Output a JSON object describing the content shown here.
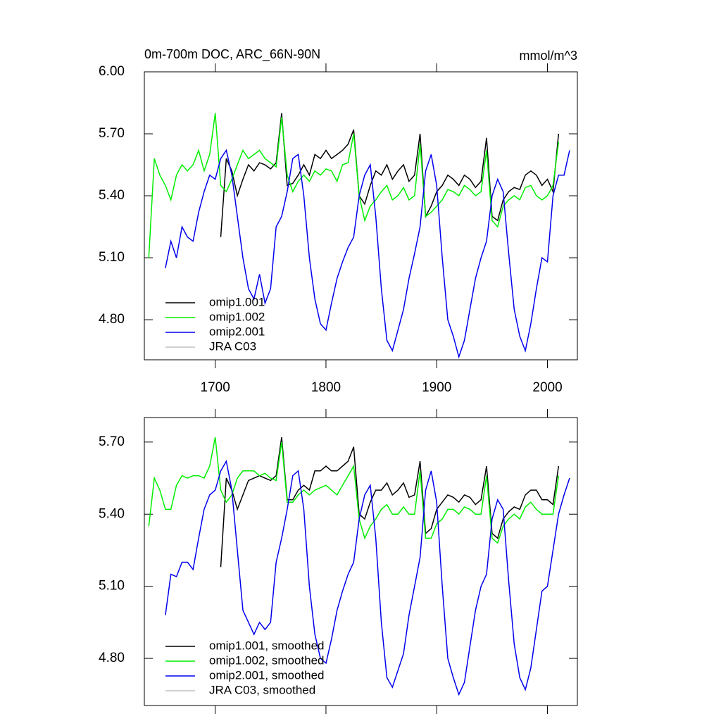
{
  "chart_data": [
    {
      "type": "line",
      "title": "0m-700m DOC, ARC_66N-90N",
      "subtitle": "mmol/m^3",
      "xlim": [
        1636,
        2027
      ],
      "xticks": [
        1700,
        1800,
        1900,
        2000
      ],
      "ylim": [
        4.606,
        6.0
      ],
      "yticks": [
        {
          "value": 4.8,
          "label": "4.80"
        },
        {
          "value": 5.1,
          "label": "5.10"
        },
        {
          "value": 5.4,
          "label": "5.40"
        },
        {
          "value": 5.7,
          "label": "5.70"
        },
        {
          "value": 6.0,
          "label": "6.00"
        }
      ],
      "legend": "lower left",
      "x": [
        1640,
        1645,
        1650,
        1655,
        1660,
        1665,
        1670,
        1675,
        1680,
        1685,
        1690,
        1695,
        1700,
        1705,
        1710,
        1715,
        1720,
        1725,
        1730,
        1735,
        1740,
        1745,
        1750,
        1755,
        1760,
        1765,
        1770,
        1775,
        1780,
        1785,
        1790,
        1795,
        1800,
        1805,
        1810,
        1815,
        1820,
        1825,
        1830,
        1835,
        1840,
        1845,
        1850,
        1855,
        1860,
        1865,
        1870,
        1875,
        1880,
        1885,
        1890,
        1895,
        1900,
        1905,
        1910,
        1915,
        1920,
        1925,
        1930,
        1935,
        1940,
        1945,
        1950,
        1955,
        1960,
        1965,
        1970,
        1975,
        1980,
        1985,
        1990,
        1995,
        2000,
        2005,
        2010,
        2015,
        2020
      ],
      "series": [
        {
          "name": "omip1.001",
          "color": "#000000",
          "values": [
            null,
            null,
            null,
            null,
            null,
            null,
            null,
            null,
            null,
            null,
            null,
            null,
            null,
            5.2,
            5.58,
            5.52,
            5.4,
            5.48,
            5.55,
            5.52,
            5.56,
            5.55,
            5.53,
            5.56,
            5.8,
            5.45,
            5.46,
            5.5,
            5.55,
            5.5,
            5.6,
            5.58,
            5.62,
            5.58,
            5.6,
            5.62,
            5.65,
            5.72,
            5.4,
            5.36,
            5.45,
            5.52,
            5.5,
            5.55,
            5.48,
            5.52,
            5.55,
            5.47,
            5.5,
            5.7,
            5.3,
            5.35,
            5.42,
            5.45,
            5.5,
            5.48,
            5.45,
            5.5,
            5.48,
            5.44,
            5.47,
            5.68,
            5.3,
            5.28,
            5.38,
            5.42,
            5.44,
            5.43,
            5.5,
            5.52,
            5.5,
            5.45,
            5.48,
            5.42,
            5.7,
            null,
            null
          ]
        },
        {
          "name": "omip1.002",
          "color": "#00ee00",
          "values": [
            5.1,
            5.58,
            5.5,
            5.45,
            5.38,
            5.5,
            5.55,
            5.52,
            5.55,
            5.62,
            5.52,
            5.6,
            5.8,
            5.45,
            5.42,
            5.48,
            5.55,
            5.62,
            5.58,
            5.6,
            5.62,
            5.58,
            5.56,
            5.54,
            5.78,
            5.5,
            5.42,
            5.47,
            5.5,
            5.47,
            5.52,
            5.5,
            5.53,
            5.52,
            5.47,
            5.55,
            5.56,
            5.7,
            5.4,
            5.28,
            5.35,
            5.38,
            5.42,
            5.45,
            5.38,
            5.4,
            5.44,
            5.38,
            5.4,
            5.65,
            5.3,
            5.32,
            5.35,
            5.38,
            5.43,
            5.42,
            5.4,
            5.45,
            5.43,
            5.4,
            5.42,
            5.62,
            5.28,
            5.25,
            5.35,
            5.38,
            5.4,
            5.38,
            5.44,
            5.45,
            5.4,
            5.38,
            5.4,
            5.45,
            5.66,
            null,
            null
          ]
        },
        {
          "name": "omip2.001",
          "color": "#0000ee",
          "values": [
            null,
            null,
            null,
            5.05,
            5.18,
            5.1,
            5.25,
            5.2,
            5.18,
            5.32,
            5.42,
            5.5,
            5.48,
            5.58,
            5.62,
            5.5,
            5.3,
            5.1,
            4.95,
            4.9,
            5.02,
            4.88,
            4.95,
            5.25,
            5.3,
            5.42,
            5.58,
            5.6,
            5.4,
            5.1,
            4.9,
            4.78,
            4.75,
            4.88,
            5.0,
            5.08,
            5.15,
            5.2,
            5.4,
            5.5,
            5.55,
            5.3,
            4.95,
            4.7,
            4.65,
            4.75,
            4.85,
            5.0,
            5.12,
            5.25,
            5.52,
            5.6,
            5.45,
            5.1,
            4.8,
            4.72,
            4.62,
            4.7,
            4.85,
            5.0,
            5.1,
            5.18,
            5.4,
            5.48,
            5.42,
            5.12,
            4.85,
            4.72,
            4.65,
            4.78,
            4.95,
            5.1,
            5.08,
            5.4,
            5.5,
            5.5,
            5.62
          ]
        },
        {
          "name": "JRA C03",
          "color": "#c0c0c0"
        }
      ]
    },
    {
      "type": "line",
      "xlim": [
        1636,
        2027
      ],
      "ylim": [
        4.604,
        5.802
      ],
      "yticks": [
        {
          "value": 4.8,
          "label": "4.80"
        },
        {
          "value": 5.1,
          "label": "5.10"
        },
        {
          "value": 5.4,
          "label": "5.40"
        },
        {
          "value": 5.7,
          "label": "5.70"
        }
      ],
      "legend": "lower left",
      "x": [
        1640,
        1645,
        1650,
        1655,
        1660,
        1665,
        1670,
        1675,
        1680,
        1685,
        1690,
        1695,
        1700,
        1705,
        1710,
        1715,
        1720,
        1725,
        1730,
        1735,
        1740,
        1745,
        1750,
        1755,
        1760,
        1765,
        1770,
        1775,
        1780,
        1785,
        1790,
        1795,
        1800,
        1805,
        1810,
        1815,
        1820,
        1825,
        1830,
        1835,
        1840,
        1845,
        1850,
        1855,
        1860,
        1865,
        1870,
        1875,
        1880,
        1885,
        1890,
        1895,
        1900,
        1905,
        1910,
        1915,
        1920,
        1925,
        1930,
        1935,
        1940,
        1945,
        1950,
        1955,
        1960,
        1965,
        1970,
        1975,
        1980,
        1985,
        1990,
        1995,
        2000,
        2005,
        2010,
        2015,
        2020
      ],
      "series": [
        {
          "name": "omip1.001, smoothed",
          "color": "#000000",
          "values": [
            null,
            null,
            null,
            null,
            null,
            null,
            null,
            null,
            null,
            null,
            null,
            null,
            null,
            5.18,
            5.55,
            5.5,
            5.42,
            5.48,
            5.54,
            5.55,
            5.56,
            5.55,
            5.54,
            5.56,
            5.72,
            5.46,
            5.46,
            5.5,
            5.52,
            5.5,
            5.58,
            5.58,
            5.6,
            5.58,
            5.58,
            5.6,
            5.62,
            5.68,
            5.4,
            5.38,
            5.45,
            5.5,
            5.5,
            5.53,
            5.48,
            5.5,
            5.53,
            5.47,
            5.48,
            5.62,
            5.32,
            5.34,
            5.42,
            5.45,
            5.48,
            5.47,
            5.45,
            5.48,
            5.47,
            5.44,
            5.46,
            5.6,
            5.32,
            5.3,
            5.38,
            5.41,
            5.43,
            5.42,
            5.48,
            5.5,
            5.5,
            5.46,
            5.46,
            5.44,
            5.6,
            null,
            null
          ]
        },
        {
          "name": "omip1.002, smoothed",
          "color": "#00ee00",
          "values": [
            5.35,
            5.55,
            5.5,
            5.42,
            5.42,
            5.52,
            5.56,
            5.55,
            5.56,
            5.56,
            5.55,
            5.6,
            5.72,
            5.5,
            5.45,
            5.48,
            5.55,
            5.58,
            5.58,
            5.58,
            5.56,
            5.57,
            5.55,
            5.54,
            5.7,
            5.45,
            5.45,
            5.48,
            5.5,
            5.48,
            5.5,
            5.51,
            5.52,
            5.5,
            5.48,
            5.52,
            5.56,
            5.6,
            5.38,
            5.3,
            5.35,
            5.38,
            5.42,
            5.44,
            5.4,
            5.4,
            5.43,
            5.4,
            5.4,
            5.58,
            5.3,
            5.3,
            5.36,
            5.38,
            5.42,
            5.42,
            5.4,
            5.43,
            5.42,
            5.4,
            5.4,
            5.56,
            5.3,
            5.28,
            5.35,
            5.38,
            5.4,
            5.38,
            5.43,
            5.45,
            5.42,
            5.4,
            5.4,
            5.4,
            5.56,
            null,
            null
          ]
        },
        {
          "name": "omip2.001, smoothed",
          "color": "#0000ee",
          "values": [
            null,
            null,
            null,
            4.98,
            5.15,
            5.14,
            5.2,
            5.2,
            5.17,
            5.3,
            5.42,
            5.48,
            5.5,
            5.58,
            5.62,
            5.5,
            5.25,
            5.0,
            4.95,
            4.9,
            4.95,
            4.92,
            4.95,
            5.2,
            5.3,
            5.42,
            5.56,
            5.58,
            5.42,
            5.1,
            4.9,
            4.8,
            4.78,
            4.88,
            5.0,
            5.08,
            5.15,
            5.2,
            5.38,
            5.48,
            5.52,
            5.3,
            4.95,
            4.72,
            4.68,
            4.75,
            4.82,
            4.98,
            5.1,
            5.22,
            5.5,
            5.58,
            5.45,
            5.1,
            4.8,
            4.72,
            4.65,
            4.7,
            4.85,
            5.0,
            5.1,
            5.15,
            5.38,
            5.46,
            5.42,
            5.12,
            4.86,
            4.72,
            4.67,
            4.76,
            4.92,
            5.08,
            5.1,
            5.25,
            5.4,
            5.48,
            5.55
          ]
        },
        {
          "name": "JRA C03, smoothed",
          "color": "#c0c0c0"
        }
      ]
    }
  ]
}
